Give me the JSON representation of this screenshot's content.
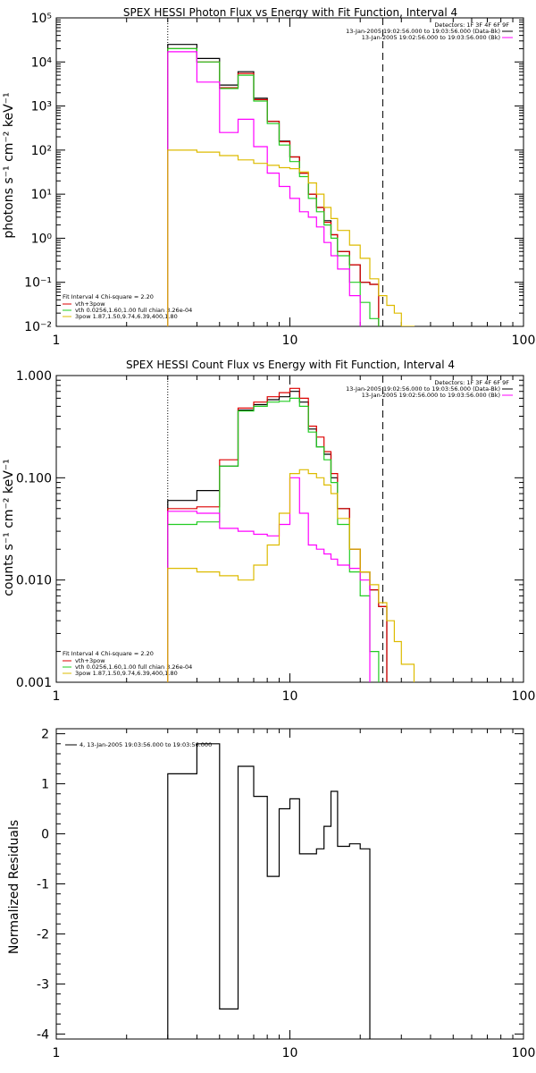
{
  "chart_data": [
    {
      "type": "line",
      "title": "SPEX HESSI Photon Flux vs Energy with Fit Function, Interval 4",
      "ylabel": "photons s⁻¹ cm⁻² keV⁻¹",
      "xlabel": "",
      "xscale": "log",
      "yscale": "log",
      "xlim": [
        1,
        100
      ],
      "ylim": [
        0.01,
        100000
      ],
      "x_ticks": [
        "1",
        "10",
        "100"
      ],
      "y_ticks": [
        "10⁻²",
        "10⁻¹",
        "10⁰",
        "10¹",
        "10²",
        "10³",
        "10⁴",
        "10⁵"
      ],
      "legend_top_right": [
        "Detectors: 1F 3F 4F 6F 9F",
        "13-Jan-2005 19:02:56.000 to 19:03:56.000 (Data-Bk)",
        "13-Jan-2005 19:02:56.000 to 19:03:56.000 (Bk)"
      ],
      "legend_bottom_left": [
        "Fit Interval 4   Chi-square = 2.20",
        "vth+3pow",
        "vth 0.0256,1.60,1.00  full chian 3.26e-04",
        "3pow 1.87,1.50,9.74,6.39,400,1.80"
      ],
      "vlines": [
        {
          "x": 3.0,
          "style": "dotted"
        },
        {
          "x": 25.0,
          "style": "dashed"
        }
      ],
      "edges": [
        3.0,
        4.0,
        5.0,
        6.0,
        7.0,
        8.0,
        9.0,
        10.0,
        11.0,
        12.0,
        13.0,
        14.0,
        15.0,
        16.0,
        18.0,
        20.0,
        22.0,
        24.0,
        26.0,
        28.0,
        30.0,
        34.0
      ],
      "series": [
        {
          "color": "#000000",
          "values": [
            25000,
            12000,
            3000,
            6000,
            1500,
            450,
            160,
            70,
            30,
            10,
            5,
            2.5,
            1.2,
            0.5,
            0.25,
            0.1,
            0.09,
            null,
            null,
            null,
            null
          ]
        },
        {
          "color": "#dd0000",
          "values": [
            20000,
            10000,
            2600,
            5500,
            1400,
            450,
            155,
            70,
            30,
            10,
            5,
            2.3,
            1.2,
            0.5,
            0.25,
            0.1,
            0.09,
            null,
            null,
            null,
            null
          ]
        },
        {
          "color": "#22cc22",
          "values": [
            20000,
            10000,
            2500,
            5000,
            1300,
            400,
            130,
            55,
            25,
            8,
            4,
            2,
            1,
            0.4,
            0.1,
            0.035,
            0.015,
            null,
            null,
            null,
            null
          ]
        },
        {
          "color": "#ff00ff",
          "values": [
            17000,
            3500,
            250,
            500,
            120,
            30,
            15,
            8,
            4,
            3,
            1.8,
            0.8,
            0.4,
            0.2,
            0.05,
            null,
            null,
            null,
            null,
            null,
            null
          ]
        },
        {
          "color": "#ddbb00",
          "values": [
            100,
            90,
            75,
            60,
            50,
            45,
            40,
            38,
            32,
            18,
            10,
            5,
            2.8,
            1.5,
            0.7,
            0.35,
            0.12,
            0.05,
            0.03,
            0.02,
            0.01
          ]
        }
      ]
    },
    {
      "type": "line",
      "title": "SPEX HESSI Count Flux vs Energy with Fit Function, Interval 4",
      "ylabel": "counts s⁻¹ cm⁻² keV⁻¹",
      "xlabel": "",
      "xscale": "log",
      "yscale": "log",
      "xlim": [
        1,
        100
      ],
      "ylim": [
        0.001,
        1.0
      ],
      "x_ticks": [
        "1",
        "10",
        "100"
      ],
      "y_ticks": [
        "0.001",
        "0.010",
        "0.100",
        "1.000"
      ],
      "legend_top_right": [
        "Detectors: 1F 3F 4F 6F 9F",
        "13-Jan-2005 19:02:56.000 to 19:03:56.000 (Data-Bk)",
        "13-Jan-2005 19:02:56.000 to 19:03:56.000 (Bk)"
      ],
      "legend_bottom_left": [
        "Fit Interval 4   Chi-square = 2.20",
        "vth+3pow",
        "vth 0.0256,1.60,1.00  full chian 3.26e-04",
        "3pow 1.87,1.50,9.74,6.39,400,1.80"
      ],
      "vlines": [
        {
          "x": 3.0,
          "style": "dotted"
        },
        {
          "x": 25.0,
          "style": "dashed"
        }
      ],
      "edges": [
        3.0,
        4.0,
        5.0,
        6.0,
        7.0,
        8.0,
        9.0,
        10.0,
        11.0,
        12.0,
        13.0,
        14.0,
        15.0,
        16.0,
        18.0,
        20.0,
        22.0,
        24.0,
        26.0,
        28.0,
        30.0,
        34.0
      ],
      "series": [
        {
          "color": "#000000",
          "values": [
            0.06,
            0.075,
            0.13,
            0.46,
            0.52,
            0.58,
            0.62,
            0.7,
            0.55,
            0.3,
            0.2,
            0.17,
            0.1,
            0.05,
            0.02,
            0.012,
            0.008,
            0.0055,
            null,
            null,
            null
          ]
        },
        {
          "color": "#dd0000",
          "values": [
            0.05,
            0.052,
            0.15,
            0.48,
            0.55,
            0.62,
            0.68,
            0.75,
            0.6,
            0.32,
            0.25,
            0.18,
            0.11,
            0.05,
            0.02,
            0.012,
            0.008,
            0.0055,
            null,
            null,
            null
          ]
        },
        {
          "color": "#22cc22",
          "values": [
            0.035,
            0.037,
            0.13,
            0.45,
            0.5,
            0.55,
            0.56,
            0.6,
            0.5,
            0.28,
            0.2,
            0.15,
            0.09,
            0.035,
            0.012,
            0.007,
            0.002,
            null,
            null,
            null,
            null
          ]
        },
        {
          "color": "#ff00ff",
          "values": [
            0.047,
            0.045,
            0.032,
            0.03,
            0.028,
            0.027,
            0.035,
            0.1,
            0.045,
            0.022,
            0.02,
            0.018,
            0.016,
            0.014,
            0.013,
            0.01,
            null,
            null,
            null,
            null,
            null
          ]
        },
        {
          "color": "#ddbb00",
          "values": [
            0.013,
            0.012,
            0.011,
            0.01,
            0.014,
            0.022,
            0.045,
            0.11,
            0.12,
            0.11,
            0.1,
            0.085,
            0.07,
            0.04,
            0.02,
            0.012,
            0.009,
            0.006,
            0.004,
            0.0025,
            0.0015
          ]
        }
      ]
    },
    {
      "type": "line",
      "title": "",
      "ylabel": "Normalized Residuals",
      "xlabel": "",
      "xscale": "log",
      "yscale": "linear",
      "xlim": [
        1,
        100
      ],
      "ylim": [
        -4.1,
        2.1
      ],
      "x_ticks": [
        "1",
        "10",
        "100"
      ],
      "y_ticks": [
        "-4",
        "-3",
        "-2",
        "-1",
        "0",
        "1",
        "2"
      ],
      "legend": "4, 13-Jan-2005 19:03:56.000 to 19:03:56.000",
      "edges": [
        3.0,
        4.0,
        5.0,
        6.0,
        7.0,
        8.0,
        9.0,
        10.0,
        11.0,
        12.0,
        13.0,
        14.0,
        15.0,
        16.0,
        18.0,
        20.0,
        22.0,
        24.0,
        26.0
      ],
      "series": [
        {
          "color": "#000000",
          "values": [
            1.2,
            1.8,
            -3.5,
            1.35,
            0.75,
            -0.85,
            0.5,
            0.7,
            -0.4,
            -0.4,
            -0.3,
            0.15,
            0.85,
            -0.25,
            -0.2,
            -0.3,
            null,
            null
          ]
        }
      ]
    }
  ]
}
